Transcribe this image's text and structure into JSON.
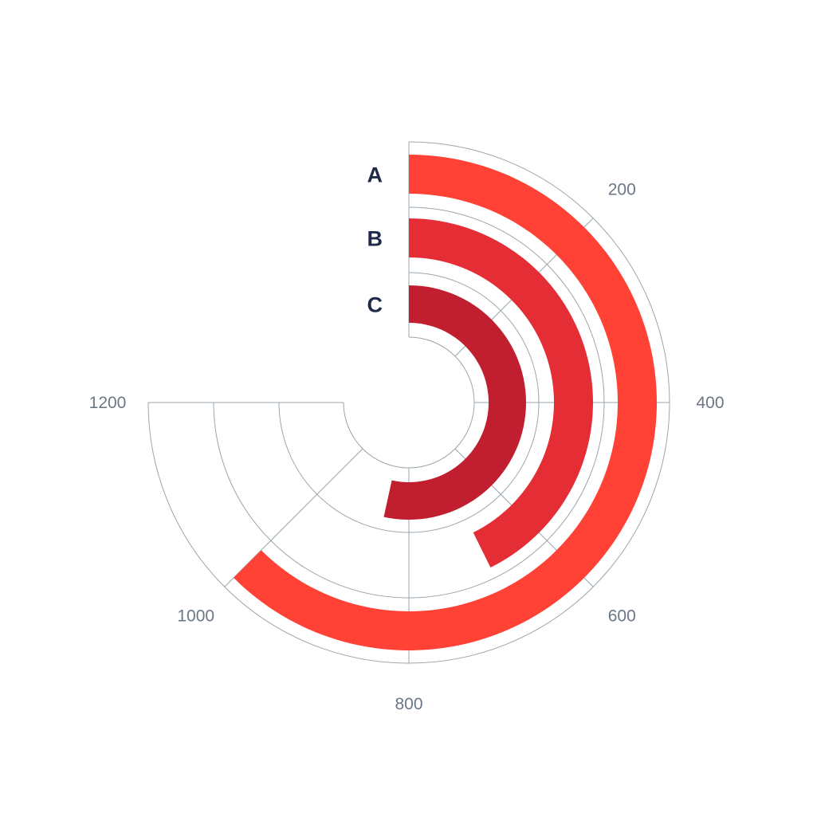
{
  "chart_data": {
    "type": "radial-bar",
    "categories": [
      "A",
      "B",
      "C"
    ],
    "values": [
      1000,
      683,
      855
    ],
    "colors": [
      "#FF4136",
      "#E52D36",
      "#C11F2F"
    ],
    "axis": {
      "min": 0,
      "max": 1200,
      "sweep_degrees": 270,
      "ticks": [
        0,
        200,
        400,
        600,
        800,
        1000,
        1200
      ],
      "tick_labels": [
        "",
        "200",
        "400",
        "600",
        "800",
        "1000",
        "1200"
      ]
    },
    "grid": true,
    "grid_color": "#9aa5ad",
    "label_color": "#1f2a4a",
    "tick_label_color": "#6b7785"
  }
}
